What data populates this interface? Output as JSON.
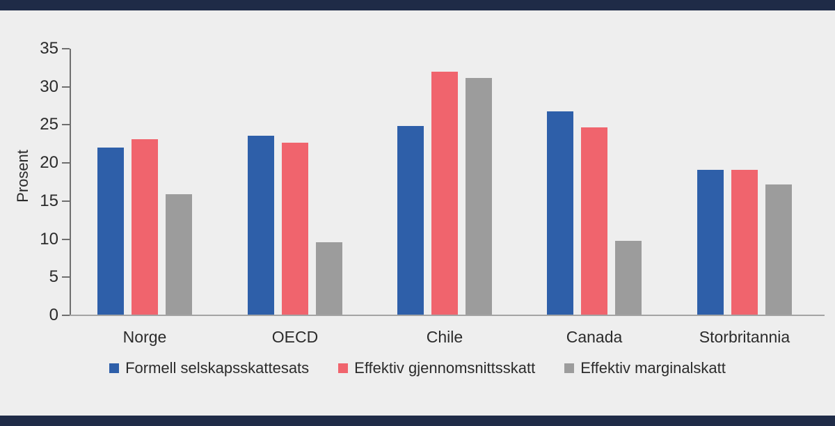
{
  "figure": {
    "background_color": "#eeeeee",
    "frame_band_color": "#1f2b47",
    "axis_color": "#6e6e6e",
    "baseline_color": "#a3a3a3",
    "text_color": "#2b2b2b"
  },
  "chart_data": {
    "type": "bar",
    "title": "",
    "xlabel": "",
    "ylabel": "Prosent",
    "ylim": [
      0,
      35
    ],
    "yticks": [
      0,
      5,
      10,
      15,
      20,
      25,
      30,
      35
    ],
    "grid": false,
    "legend_position": "bottom",
    "categories": [
      "Norge",
      "OECD",
      "Chile",
      "Canada",
      "Storbritannia"
    ],
    "series": [
      {
        "name": "Formell selskapsskattesats",
        "color": "#2e5fa9",
        "values": [
          22.0,
          23.6,
          24.9,
          26.8,
          19.1
        ]
      },
      {
        "name": "Effektiv gjennomsnittsskatt",
        "color": "#f0646d",
        "values": [
          23.1,
          22.7,
          32.0,
          24.7,
          19.1
        ]
      },
      {
        "name": "Effektiv marginalskatt",
        "color": "#9c9c9c",
        "values": [
          15.9,
          9.6,
          31.2,
          9.8,
          17.2
        ]
      }
    ]
  }
}
